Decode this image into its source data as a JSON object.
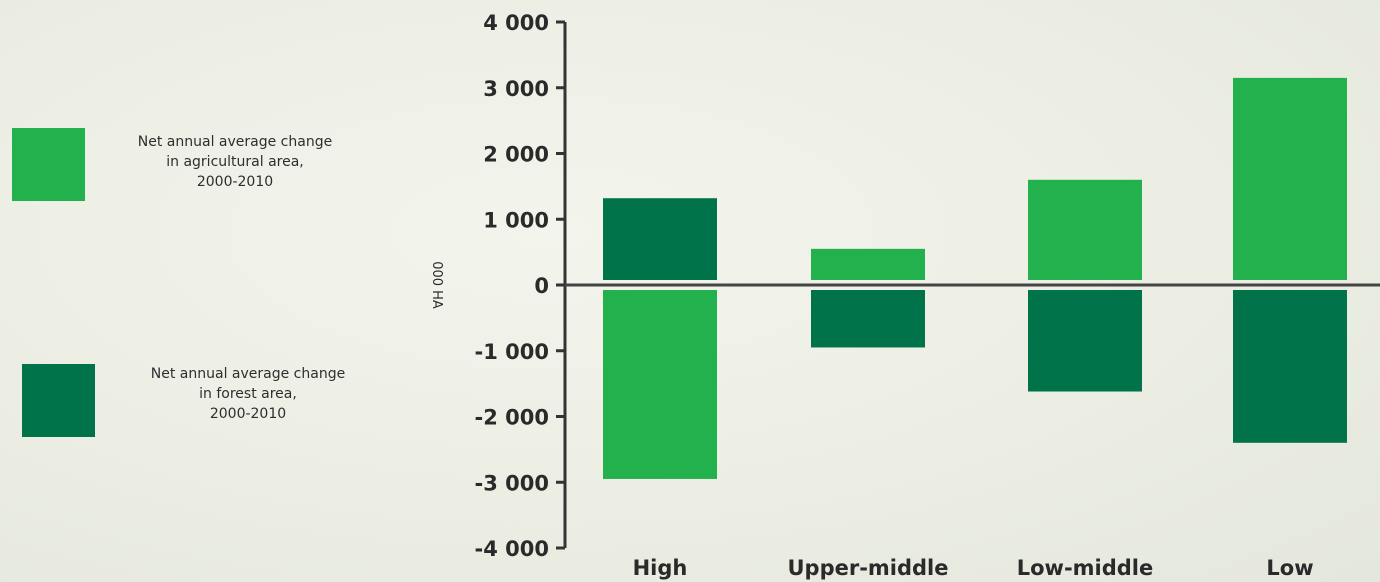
{
  "chart_data": {
    "type": "bar",
    "ylabel": "000 HA",
    "ylim": [
      -4000,
      4000
    ],
    "yticks": [
      4000,
      3000,
      2000,
      1000,
      0,
      -1000,
      -2000,
      -3000,
      -4000
    ],
    "ytick_labels": [
      "4 000",
      "3 000",
      "2 000",
      "1 000",
      "0",
      "-1 000",
      "-2 000",
      "-3 000",
      "-4 000"
    ],
    "categories": [
      "High",
      "Upper-middle",
      "Low-middle",
      "Low"
    ],
    "series": [
      {
        "name": "Net annual average change in agricultural area, 2000-2010",
        "legend_lines": [
          "Net annual average change",
          "in agricultural area,",
          "2000-2010"
        ],
        "color": "#22b14c",
        "values": [
          -2950,
          550,
          1600,
          3150
        ]
      },
      {
        "name": "Net annual average change in forest area, 2000-2010",
        "legend_lines": [
          "Net annual average change",
          "in forest area,",
          "2000-2010"
        ],
        "color": "#00734a",
        "values": [
          1320,
          -950,
          -1620,
          -2400
        ]
      }
    ],
    "grid": false,
    "legend_position": "left"
  }
}
